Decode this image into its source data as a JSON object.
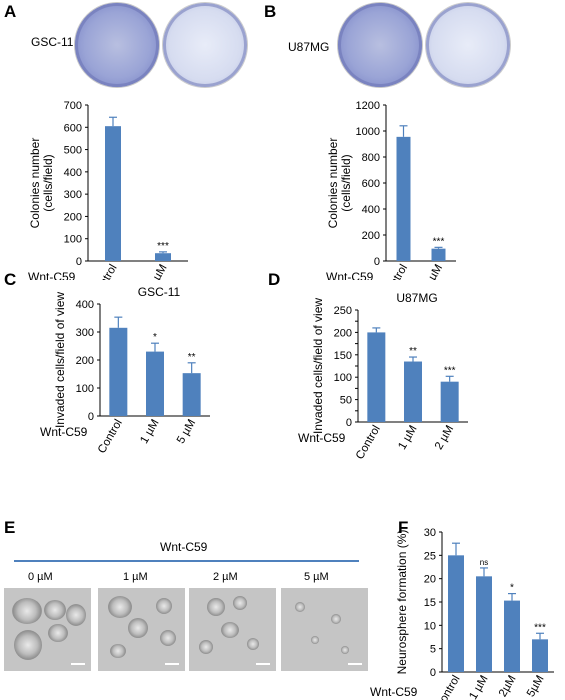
{
  "panels": {
    "A": {
      "letter": "A",
      "cell_label": "GSC-11"
    },
    "B": {
      "letter": "B",
      "cell_label": "U87MG"
    },
    "C": {
      "letter": "C"
    },
    "D": {
      "letter": "D"
    },
    "E": {
      "letter": "E",
      "treatment_label": "Wnt-C59",
      "conditions": [
        "0 µM",
        "1 µM",
        "2 µM",
        "5 µM"
      ]
    },
    "F": {
      "letter": "F"
    }
  },
  "colors": {
    "bar": "#4f81bd",
    "line": "#4f81bd"
  },
  "chart_data": [
    {
      "id": "A",
      "type": "bar",
      "title": "",
      "ylabel": [
        "Colonies number",
        "(cells/field)"
      ],
      "row_label": "Wnt-C59",
      "categories": [
        "Control",
        "1 µM"
      ],
      "values": [
        605,
        35
      ],
      "errors": [
        40,
        6
      ],
      "annotations": [
        "",
        "***"
      ],
      "ylim": [
        0,
        700
      ],
      "yticks": [
        0,
        100,
        200,
        300,
        400,
        500,
        600,
        700
      ]
    },
    {
      "id": "B",
      "type": "bar",
      "title": "",
      "ylabel": [
        "Colonies number",
        "(cells/field)"
      ],
      "row_label": "Wnt-C59",
      "categories": [
        "Control",
        "1 µM"
      ],
      "values": [
        955,
        95
      ],
      "errors": [
        85,
        10
      ],
      "annotations": [
        "",
        "***"
      ],
      "ylim": [
        0,
        1200
      ],
      "yticks": [
        0,
        200,
        400,
        600,
        800,
        1000,
        1200
      ]
    },
    {
      "id": "C",
      "type": "bar",
      "title": "GSC-11",
      "ylabel": [
        "Invaded cells/field of view"
      ],
      "row_label": "Wnt-C59",
      "categories": [
        "Control",
        "1 µM",
        "5 µM"
      ],
      "values": [
        315,
        230,
        153
      ],
      "errors": [
        38,
        30,
        37
      ],
      "annotations": [
        "",
        "*",
        "**"
      ],
      "ylim": [
        0,
        400
      ],
      "yticks": [
        0,
        100,
        200,
        300,
        400
      ]
    },
    {
      "id": "D",
      "type": "bar",
      "title": "U87MG",
      "ylabel": [
        "Invaded cells/field of view"
      ],
      "row_label": "Wnt-C59",
      "categories": [
        "Control",
        "1 µM",
        "2 µM"
      ],
      "values": [
        200,
        135,
        90
      ],
      "errors": [
        10,
        10,
        12
      ],
      "annotations": [
        "",
        "**",
        "***"
      ],
      "ylim": [
        0,
        250
      ],
      "yticks": [
        0,
        25,
        50,
        75,
        100,
        125,
        150,
        175,
        200,
        225,
        250
      ],
      "ytick_labels": [
        "0",
        "",
        "50",
        "",
        "100",
        "",
        "150",
        "",
        "200",
        "",
        "250"
      ]
    },
    {
      "id": "F",
      "type": "bar",
      "title": "",
      "ylabel": [
        "Neurosphere formation (%)"
      ],
      "row_label": "Wnt-C59",
      "categories": [
        "Control",
        "1 µM",
        "2µM",
        "5µM"
      ],
      "values": [
        25,
        20.5,
        15.3,
        7
      ],
      "errors": [
        2.6,
        1.8,
        1.5,
        1.3
      ],
      "annotations": [
        "",
        "ns",
        "*",
        "***"
      ],
      "ylim": [
        0,
        30
      ],
      "yticks": [
        0,
        5,
        10,
        15,
        20,
        25,
        30
      ]
    }
  ]
}
